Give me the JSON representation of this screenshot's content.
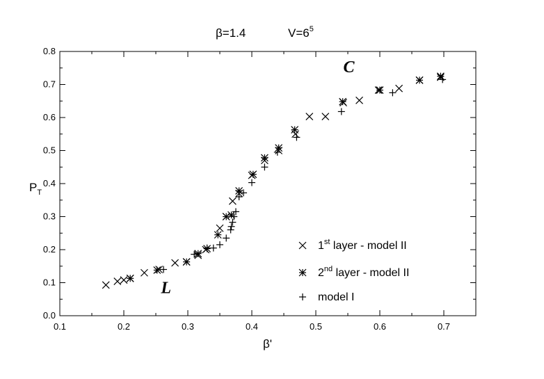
{
  "chart_data": {
    "type": "scatter",
    "title_left": "β=1.4",
    "title_right_base": "V=6",
    "title_right_sup": "5",
    "xlabel": "β'",
    "ylabel_main": "P",
    "ylabel_sub": "T",
    "xlim": [
      0.1,
      0.75
    ],
    "ylim": [
      0.0,
      0.8
    ],
    "xticks": [
      "0.1",
      "0.2",
      "0.3",
      "0.4",
      "0.5",
      "0.6",
      "0.7"
    ],
    "yticks": [
      "0.0",
      "0.1",
      "0.2",
      "0.3",
      "0.4",
      "0.5",
      "0.6",
      "0.7",
      "0.8"
    ],
    "grid": false,
    "legend_position": "bottom-right",
    "annotations": [
      {
        "text": "C",
        "x": 0.543,
        "y": 0.737
      },
      {
        "text": "L",
        "x": 0.258,
        "y": 0.068
      }
    ],
    "series": [
      {
        "name": "1st layer - model II",
        "legend_parts": [
          "1",
          "st",
          " layer - model II"
        ],
        "marker": "x",
        "points": [
          [
            0.172,
            0.093
          ],
          [
            0.19,
            0.104
          ],
          [
            0.2,
            0.108
          ],
          [
            0.21,
            0.113
          ],
          [
            0.232,
            0.13
          ],
          [
            0.255,
            0.14
          ],
          [
            0.28,
            0.16
          ],
          [
            0.298,
            0.163
          ],
          [
            0.316,
            0.183
          ],
          [
            0.328,
            0.2
          ],
          [
            0.35,
            0.265
          ],
          [
            0.36,
            0.3
          ],
          [
            0.37,
            0.347
          ],
          [
            0.38,
            0.37
          ],
          [
            0.4,
            0.425
          ],
          [
            0.42,
            0.47
          ],
          [
            0.442,
            0.5
          ],
          [
            0.468,
            0.55
          ],
          [
            0.49,
            0.603
          ],
          [
            0.515,
            0.603
          ],
          [
            0.543,
            0.645
          ],
          [
            0.568,
            0.652
          ],
          [
            0.598,
            0.683
          ],
          [
            0.63,
            0.688
          ],
          [
            0.662,
            0.713
          ],
          [
            0.695,
            0.722
          ]
        ]
      },
      {
        "name": "2nd layer - model II",
        "legend_parts": [
          "2",
          "nd",
          " layer - model II"
        ],
        "marker": "asterisk",
        "points": [
          [
            0.21,
            0.113
          ],
          [
            0.252,
            0.138
          ],
          [
            0.298,
            0.163
          ],
          [
            0.316,
            0.188
          ],
          [
            0.33,
            0.203
          ],
          [
            0.347,
            0.245
          ],
          [
            0.36,
            0.3
          ],
          [
            0.368,
            0.305
          ],
          [
            0.38,
            0.378
          ],
          [
            0.402,
            0.428
          ],
          [
            0.42,
            0.478
          ],
          [
            0.442,
            0.508
          ],
          [
            0.467,
            0.563
          ],
          [
            0.542,
            0.648
          ],
          [
            0.6,
            0.683
          ],
          [
            0.662,
            0.713
          ],
          [
            0.695,
            0.725
          ]
        ]
      },
      {
        "name": "model I",
        "legend_parts": [
          "",
          "",
          "model I"
        ],
        "marker": "plus",
        "points": [
          [
            0.262,
            0.14
          ],
          [
            0.31,
            0.186
          ],
          [
            0.33,
            0.205
          ],
          [
            0.34,
            0.205
          ],
          [
            0.35,
            0.215
          ],
          [
            0.36,
            0.235
          ],
          [
            0.367,
            0.26
          ],
          [
            0.368,
            0.27
          ],
          [
            0.37,
            0.283
          ],
          [
            0.372,
            0.3
          ],
          [
            0.375,
            0.315
          ],
          [
            0.38,
            0.36
          ],
          [
            0.387,
            0.372
          ],
          [
            0.4,
            0.403
          ],
          [
            0.42,
            0.45
          ],
          [
            0.44,
            0.495
          ],
          [
            0.47,
            0.54
          ],
          [
            0.54,
            0.618
          ],
          [
            0.62,
            0.675
          ],
          [
            0.698,
            0.715
          ]
        ]
      }
    ]
  }
}
